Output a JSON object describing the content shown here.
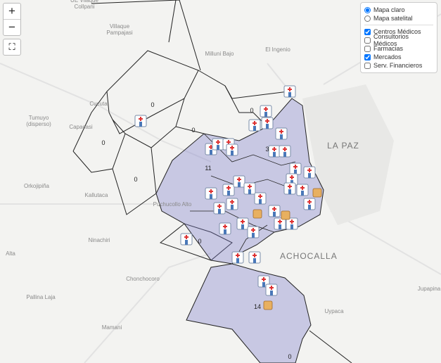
{
  "map": {
    "zoom_in": "+",
    "zoom_out": "−",
    "fullscreen": "⛶",
    "base_layers": [
      {
        "label": "Mapa claro",
        "selected": true
      },
      {
        "label": "Mapa satelital",
        "selected": false
      }
    ],
    "overlays": [
      {
        "label": "Centros Médicos",
        "checked": true
      },
      {
        "label": "Consultorios Médicos",
        "checked": false
      },
      {
        "label": "Farmacias",
        "checked": false
      },
      {
        "label": "Mercados",
        "checked": true
      },
      {
        "label": "Serv. Financieros",
        "checked": false
      }
    ],
    "places": [
      {
        "text": "UE Vilaque Collpani"
      },
      {
        "text": "Villaque Pampajasi"
      },
      {
        "text": "Milluni Bajo"
      },
      {
        "text": "El Ingenio"
      },
      {
        "text": "Cucuta"
      },
      {
        "text": "Tumuyo (disperso)"
      },
      {
        "text": "Capacasi"
      },
      {
        "text": "Orkojipiña"
      },
      {
        "text": "Kallutaca"
      },
      {
        "text": "Puchucollo Alto"
      },
      {
        "text": "Ninachiri"
      },
      {
        "text": "LA PAZ"
      },
      {
        "text": "ACHOCALLA"
      },
      {
        "text": "Chonchocoro"
      },
      {
        "text": "Pallina Laja"
      },
      {
        "text": "Mamani"
      },
      {
        "text": "Uypaca"
      },
      {
        "text": "Jupapina"
      },
      {
        "text": "Alta"
      }
    ],
    "district_counts": [
      0,
      0,
      0,
      0,
      0,
      11,
      3,
      0,
      14,
      0
    ]
  }
}
